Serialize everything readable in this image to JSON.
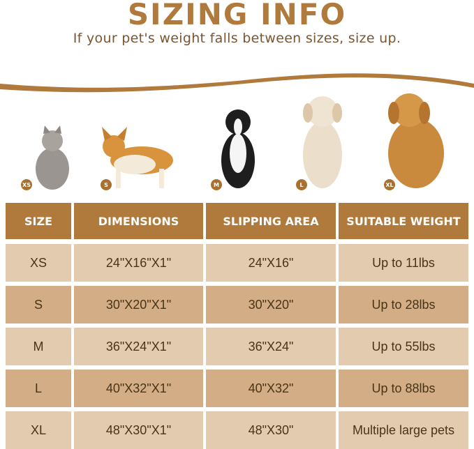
{
  "header": {
    "title": "SIZING INFO",
    "subtitle": "If your pet's weight falls between sizes, size up."
  },
  "pets": [
    {
      "badge": "XS",
      "animal": "cat"
    },
    {
      "badge": "S",
      "animal": "corgi"
    },
    {
      "badge": "M",
      "animal": "border collie"
    },
    {
      "badge": "L",
      "animal": "labrador"
    },
    {
      "badge": "XL",
      "animal": "golden retriever"
    }
  ],
  "table": {
    "headers": [
      "SIZE",
      "DIMENSIONS",
      "SLIPPING AREA",
      "SUITABLE WEIGHT"
    ],
    "rows": [
      [
        "XS",
        "24\"X16\"X1\"",
        "24\"X16\"",
        "Up to 11lbs"
      ],
      [
        "S",
        "30\"X20\"X1\"",
        "30\"X20\"",
        "Up to 28lbs"
      ],
      [
        "M",
        "36\"X24\"X1\"",
        "36\"X24\"",
        "Up to 55lbs"
      ],
      [
        "L",
        "40\"X32\"X1\"",
        "40\"X32\"",
        "Up to 88lbs"
      ],
      [
        "XL",
        "48\"X30\"X1\"",
        "48\"X30\"",
        "Multiple large pets"
      ]
    ]
  },
  "colors": {
    "accent": "#b07a3c",
    "row_light": "#e3cbb0",
    "row_dark": "#d2ad85"
  }
}
